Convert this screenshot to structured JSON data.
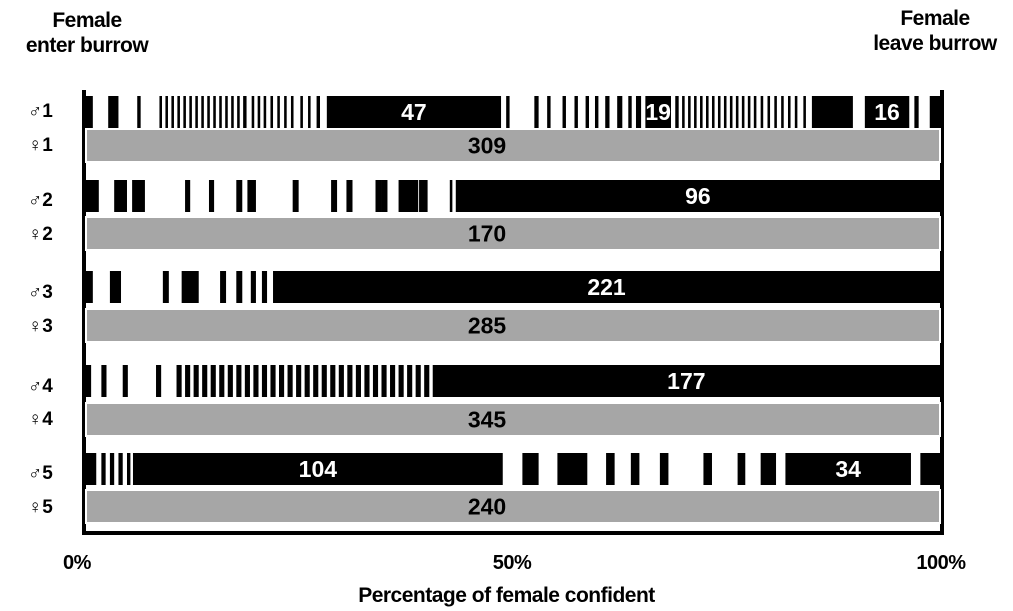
{
  "chart_data": {
    "type": "bar",
    "title": "",
    "corner_labels": {
      "left": "Female enter burrow",
      "left_lines": [
        "Female",
        "enter burrow"
      ],
      "right": "Female leave burrow",
      "right_lines": [
        "Female",
        "leave burrow"
      ]
    },
    "xlabel": "Percentage of female confident",
    "xlim": [
      0,
      100
    ],
    "xticks": [
      {
        "value": 0,
        "label": "0%"
      },
      {
        "value": 50,
        "label": "50%"
      },
      {
        "value": 100,
        "label": "100%"
      }
    ],
    "series_colors": {
      "male": "#000000",
      "female": "#a6a6a6"
    },
    "pairs": [
      {
        "male_label": "♂1",
        "female_label": "♀1",
        "female_value": 309,
        "male_segments": [
          {
            "start": 0.0,
            "end": 0.8
          },
          {
            "start": 2.6,
            "end": 3.8
          },
          {
            "start": 6.0,
            "end": 6.4
          },
          {
            "start": 8.6,
            "end": 8.9
          },
          {
            "start": 9.3,
            "end": 9.6
          },
          {
            "start": 10.0,
            "end": 10.3
          },
          {
            "start": 10.7,
            "end": 11.0
          },
          {
            "start": 11.4,
            "end": 11.7
          },
          {
            "start": 12.1,
            "end": 12.4
          },
          {
            "start": 12.8,
            "end": 13.1
          },
          {
            "start": 13.5,
            "end": 13.8
          },
          {
            "start": 14.2,
            "end": 14.5
          },
          {
            "start": 14.9,
            "end": 15.2
          },
          {
            "start": 15.6,
            "end": 15.9
          },
          {
            "start": 16.3,
            "end": 16.6
          },
          {
            "start": 17.0,
            "end": 17.3
          },
          {
            "start": 17.7,
            "end": 18.0
          },
          {
            "start": 18.4,
            "end": 18.8
          },
          {
            "start": 19.4,
            "end": 19.7
          },
          {
            "start": 20.1,
            "end": 20.4
          },
          {
            "start": 20.8,
            "end": 21.1
          },
          {
            "start": 21.6,
            "end": 21.9
          },
          {
            "start": 22.4,
            "end": 22.7
          },
          {
            "start": 23.2,
            "end": 23.5
          },
          {
            "start": 24.0,
            "end": 24.3
          },
          {
            "start": 25.1,
            "end": 25.4
          },
          {
            "start": 26.0,
            "end": 26.3
          },
          {
            "start": 27.0,
            "end": 27.4
          },
          {
            "start": 28.2,
            "end": 48.6,
            "label": "47"
          },
          {
            "start": 49.2,
            "end": 49.6
          },
          {
            "start": 52.5,
            "end": 53.0
          },
          {
            "start": 54.0,
            "end": 54.4
          },
          {
            "start": 55.8,
            "end": 56.2
          },
          {
            "start": 57.2,
            "end": 57.6
          },
          {
            "start": 58.5,
            "end": 58.9
          },
          {
            "start": 59.6,
            "end": 60.0
          },
          {
            "start": 60.8,
            "end": 61.3
          },
          {
            "start": 62.2,
            "end": 62.8
          },
          {
            "start": 63.5,
            "end": 63.9
          },
          {
            "start": 64.4,
            "end": 65.0
          },
          {
            "start": 65.5,
            "end": 68.5,
            "label": "19"
          },
          {
            "start": 69.0,
            "end": 69.4
          },
          {
            "start": 69.8,
            "end": 70.1
          },
          {
            "start": 70.5,
            "end": 70.8
          },
          {
            "start": 71.2,
            "end": 71.5
          },
          {
            "start": 71.9,
            "end": 72.2
          },
          {
            "start": 72.6,
            "end": 72.9
          },
          {
            "start": 73.3,
            "end": 73.6
          },
          {
            "start": 74.0,
            "end": 74.3
          },
          {
            "start": 74.7,
            "end": 75.0
          },
          {
            "start": 75.4,
            "end": 75.7
          },
          {
            "start": 76.1,
            "end": 76.4
          },
          {
            "start": 76.8,
            "end": 77.1
          },
          {
            "start": 77.5,
            "end": 77.8
          },
          {
            "start": 78.2,
            "end": 78.5
          },
          {
            "start": 79.0,
            "end": 79.3
          },
          {
            "start": 79.8,
            "end": 80.1
          },
          {
            "start": 80.6,
            "end": 80.9
          },
          {
            "start": 81.4,
            "end": 81.7
          },
          {
            "start": 82.2,
            "end": 82.5
          },
          {
            "start": 83.0,
            "end": 83.3
          },
          {
            "start": 84.0,
            "end": 84.3
          },
          {
            "start": 85.0,
            "end": 89.8
          },
          {
            "start": 91.2,
            "end": 96.4,
            "label": "16"
          },
          {
            "start": 97.0,
            "end": 97.5
          },
          {
            "start": 98.8,
            "end": 100.0
          }
        ]
      },
      {
        "male_label": "♂2",
        "female_label": "♀2",
        "female_value": 170,
        "male_segments": [
          {
            "start": 0.0,
            "end": 1.5
          },
          {
            "start": 3.3,
            "end": 4.8
          },
          {
            "start": 5.4,
            "end": 6.9
          },
          {
            "start": 11.6,
            "end": 12.2
          },
          {
            "start": 14.4,
            "end": 15.0
          },
          {
            "start": 17.6,
            "end": 18.3
          },
          {
            "start": 18.9,
            "end": 19.9
          },
          {
            "start": 24.2,
            "end": 24.9
          },
          {
            "start": 28.7,
            "end": 29.4
          },
          {
            "start": 30.5,
            "end": 31.2
          },
          {
            "start": 30.5,
            "end": 31.2
          },
          {
            "start": 33.9,
            "end": 34.6
          },
          {
            "start": 34.6,
            "end": 35.3
          },
          {
            "start": 36.6,
            "end": 38.9
          },
          {
            "start": 39.0,
            "end": 40.0
          },
          {
            "start": 42.6,
            "end": 42.9
          },
          {
            "start": 43.3,
            "end": 100.0,
            "label": "96"
          }
        ]
      },
      {
        "male_label": "♂3",
        "female_label": "♀3",
        "female_value": 285,
        "male_segments": [
          {
            "start": 0.0,
            "end": 0.8
          },
          {
            "start": 2.8,
            "end": 4.1
          },
          {
            "start": 9.0,
            "end": 9.7
          },
          {
            "start": 11.2,
            "end": 13.2
          },
          {
            "start": 15.7,
            "end": 16.4
          },
          {
            "start": 17.6,
            "end": 18.3
          },
          {
            "start": 19.3,
            "end": 19.9
          },
          {
            "start": 20.6,
            "end": 21.2
          },
          {
            "start": 21.9,
            "end": 100.0,
            "label": "221"
          }
        ]
      },
      {
        "male_label": "♂4",
        "female_label": "♀4",
        "female_value": 345,
        "male_segments": [
          {
            "start": 0.0,
            "end": 0.6
          },
          {
            "start": 1.8,
            "end": 2.4
          },
          {
            "start": 4.3,
            "end": 4.9
          },
          {
            "start": 8.2,
            "end": 8.8
          },
          {
            "start": 10.6,
            "end": 11.2
          },
          {
            "start": 11.6,
            "end": 12.2
          },
          {
            "start": 12.6,
            "end": 13.2
          },
          {
            "start": 13.6,
            "end": 14.2
          },
          {
            "start": 14.6,
            "end": 15.2
          },
          {
            "start": 15.6,
            "end": 16.2
          },
          {
            "start": 16.6,
            "end": 17.2
          },
          {
            "start": 17.6,
            "end": 18.2
          },
          {
            "start": 18.6,
            "end": 19.2
          },
          {
            "start": 19.6,
            "end": 20.2
          },
          {
            "start": 20.6,
            "end": 21.2
          },
          {
            "start": 21.6,
            "end": 22.2
          },
          {
            "start": 22.6,
            "end": 23.2
          },
          {
            "start": 23.6,
            "end": 24.2
          },
          {
            "start": 24.6,
            "end": 25.2
          },
          {
            "start": 25.6,
            "end": 26.2
          },
          {
            "start": 26.6,
            "end": 27.2
          },
          {
            "start": 27.6,
            "end": 28.2
          },
          {
            "start": 28.6,
            "end": 29.2
          },
          {
            "start": 29.6,
            "end": 30.2
          },
          {
            "start": 30.6,
            "end": 31.2
          },
          {
            "start": 31.6,
            "end": 32.2
          },
          {
            "start": 32.6,
            "end": 33.2
          },
          {
            "start": 33.6,
            "end": 34.2
          },
          {
            "start": 34.6,
            "end": 35.2
          },
          {
            "start": 35.6,
            "end": 36.2
          },
          {
            "start": 36.6,
            "end": 37.2
          },
          {
            "start": 37.6,
            "end": 38.2
          },
          {
            "start": 38.6,
            "end": 39.2
          },
          {
            "start": 39.6,
            "end": 40.2
          },
          {
            "start": 40.6,
            "end": 100.0,
            "label": "177"
          }
        ]
      },
      {
        "male_label": "♂5",
        "female_label": "♀5",
        "female_value": 240,
        "male_segments": [
          {
            "start": 0.0,
            "end": 1.2
          },
          {
            "start": 1.8,
            "end": 2.3
          },
          {
            "start": 2.8,
            "end": 3.3
          },
          {
            "start": 3.8,
            "end": 4.3
          },
          {
            "start": 4.8,
            "end": 5.2
          },
          {
            "start": 5.5,
            "end": 48.8,
            "label": "104"
          },
          {
            "start": 51.1,
            "end": 53.0
          },
          {
            "start": 55.2,
            "end": 58.7
          },
          {
            "start": 60.9,
            "end": 61.9
          },
          {
            "start": 63.8,
            "end": 64.8
          },
          {
            "start": 67.2,
            "end": 68.2
          },
          {
            "start": 72.3,
            "end": 73.3
          },
          {
            "start": 76.3,
            "end": 77.2
          },
          {
            "start": 79.0,
            "end": 80.8
          },
          {
            "start": 81.9,
            "end": 96.6,
            "label": "34"
          },
          {
            "start": 97.7,
            "end": 100.0
          }
        ]
      }
    ]
  }
}
